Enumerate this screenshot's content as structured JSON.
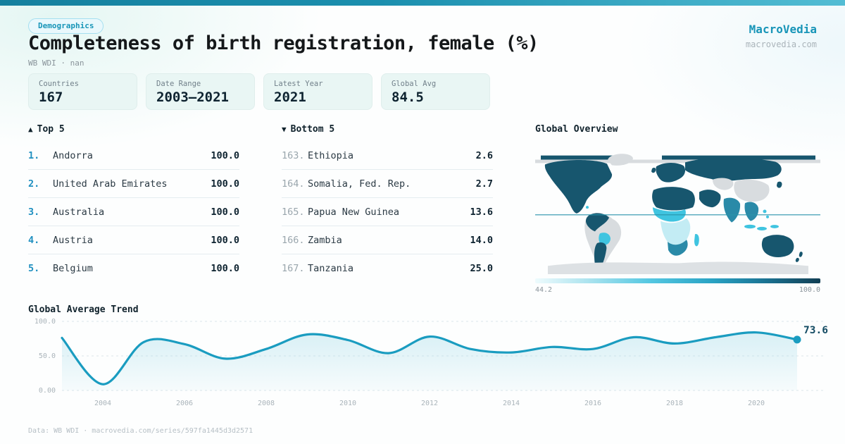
{
  "header": {
    "badge": "Demographics",
    "title": "Completeness of birth registration, female (%)",
    "subtitle": "WB WDI · nan",
    "brand": "MacroVedia",
    "brand_url": "macrovedia.com"
  },
  "stats": [
    {
      "label": "Countries",
      "value": "167"
    },
    {
      "label": "Date Range",
      "value": "2003–2021"
    },
    {
      "label": "Latest Year",
      "value": "2021"
    },
    {
      "label": "Global Avg",
      "value": "84.5"
    }
  ],
  "top5": {
    "icon": "▲",
    "label": "Top 5",
    "rows": [
      {
        "rank": "1.",
        "name": "Andorra",
        "value": "100.0"
      },
      {
        "rank": "2.",
        "name": "United Arab Emirates",
        "value": "100.0"
      },
      {
        "rank": "3.",
        "name": "Australia",
        "value": "100.0"
      },
      {
        "rank": "4.",
        "name": "Austria",
        "value": "100.0"
      },
      {
        "rank": "5.",
        "name": "Belgium",
        "value": "100.0"
      }
    ]
  },
  "bottom5": {
    "icon": "▼",
    "label": "Bottom 5",
    "rows": [
      {
        "rank": "163.",
        "name": "Ethiopia",
        "value": "2.6"
      },
      {
        "rank": "164.",
        "name": "Somalia, Fed. Rep.",
        "value": "2.7"
      },
      {
        "rank": "165.",
        "name": "Papua New Guinea",
        "value": "13.6"
      },
      {
        "rank": "166.",
        "name": "Zambia",
        "value": "14.0"
      },
      {
        "rank": "167.",
        "name": "Tanzania",
        "value": "25.0"
      }
    ]
  },
  "map": {
    "title": "Global Overview",
    "legend_min": "44.2",
    "legend_max": "100.0"
  },
  "trend": {
    "title": "Global Average Trend",
    "end_label": "73.6"
  },
  "chart_data": [
    {
      "type": "heatmap",
      "subtype": "choropleth-world-map",
      "title": "Global Overview",
      "legend": {
        "min": 44.2,
        "max": 100.0
      },
      "colorscale": [
        "#eefbfd",
        "#55c8e2",
        "#123f54"
      ],
      "no_data_color": "#d8dcdf",
      "notes": "dark teal = high completeness (Americas, Europe, Russia, Middle East, Australia); cyan/light = low (Sub-Saharan Africa, parts of SE Asia); gray = no data (Brazil, Greenland, China, Antarctica)"
    },
    {
      "type": "area",
      "title": "Global Average Trend",
      "x": [
        2003,
        2004,
        2005,
        2006,
        2007,
        2008,
        2009,
        2010,
        2011,
        2012,
        2013,
        2014,
        2015,
        2016,
        2017,
        2018,
        2019,
        2020,
        2021
      ],
      "values": [
        76,
        9,
        70,
        67,
        46,
        60,
        81,
        73,
        54,
        78,
        60,
        55,
        63,
        60,
        77,
        68,
        77,
        84,
        73.6
      ],
      "end_label": "73.6",
      "xticks": [
        2004,
        2006,
        2008,
        2010,
        2012,
        2014,
        2016,
        2018,
        2020
      ],
      "yticks": [
        100,
        50,
        0
      ],
      "ytick_labels": [
        "100.0",
        "50.0",
        "0.00"
      ],
      "ylim": [
        0,
        100
      ],
      "grid": "dashed-horizontal",
      "legend_position": "none"
    }
  ],
  "footer": {
    "text": "Data: WB WDI · macrovedia.com/series/597fa1445d3d2571"
  },
  "colors": {
    "accent": "#1895b8",
    "line": "#1a9cc0",
    "map_dark": "#17566e",
    "map_mid": "#3fc4e0",
    "map_no_data": "#d8dcdf",
    "card_bg": "#e9f6f4"
  }
}
